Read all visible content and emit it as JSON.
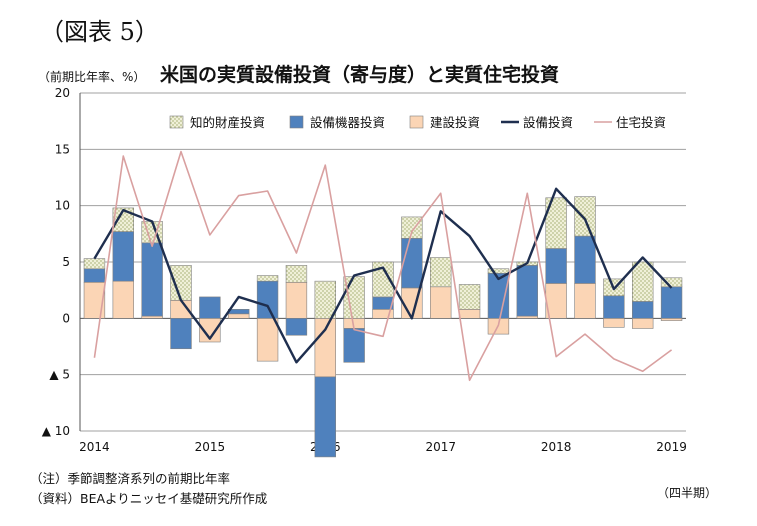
{
  "figure_label": "（図表 5）",
  "unit_label": "（前期比年率、%）",
  "notes": [
    "（注）季節調整済系列の前期比年率",
    "（資料）BEAよりニッセイ基礎研究所作成"
  ],
  "period_label": "（四半期）",
  "chart_data": {
    "type": "bar",
    "title": "米国の実質設備投資（寄与度）と実質住宅投資",
    "ylim": [
      -10,
      20
    ],
    "yticks": [
      20,
      15,
      10,
      5,
      0,
      -5,
      -10
    ],
    "ytick_labels": [
      "20",
      "15",
      "10",
      "5",
      "0",
      "▲ 5",
      "▲ 10"
    ],
    "xtick_labels": [
      {
        "quarter_index": 0,
        "label": "2014"
      },
      {
        "quarter_index": 4,
        "label": "2015"
      },
      {
        "quarter_index": 8,
        "label": "2016"
      },
      {
        "quarter_index": 12,
        "label": "2017"
      },
      {
        "quarter_index": 16,
        "label": "2018"
      },
      {
        "quarter_index": 20,
        "label": "2019"
      }
    ],
    "grid": true,
    "legend_position": "top",
    "colors": {
      "ip": "#f0f0d8",
      "ip_dot": "#7a8a3a",
      "equipment": "#4f81bd",
      "structures": "#fbd5b5",
      "total": "#1f2f4f",
      "residential": "#d9a0a0",
      "bar_edge": "#808080",
      "grid": "#a0a0a0"
    },
    "series": [
      {
        "name": "知的財産投資",
        "key": "ip",
        "kind": "bar",
        "values": [
          0.9,
          2.1,
          1.9,
          3.1,
          0.0,
          0.0,
          0.5,
          1.5,
          3.3,
          3.7,
          3.1,
          1.9,
          2.6,
          2.2,
          0.4,
          0.3,
          4.5,
          3.5,
          1.5,
          3.5,
          0.8
        ]
      },
      {
        "name": "設備機器投資",
        "key": "equipment",
        "kind": "bar",
        "values": [
          1.2,
          4.4,
          6.5,
          -2.7,
          1.9,
          0.4,
          3.3,
          -1.5,
          -7.1,
          -3.0,
          1.1,
          4.4,
          0.0,
          0.0,
          4.0,
          4.5,
          3.1,
          4.2,
          2.0,
          1.5,
          2.8
        ]
      },
      {
        "name": "建設投資",
        "key": "structures",
        "kind": "bar",
        "values": [
          3.2,
          3.3,
          0.2,
          1.6,
          -2.1,
          0.4,
          -3.8,
          3.2,
          -5.2,
          -0.9,
          0.8,
          2.7,
          2.8,
          0.8,
          -1.4,
          0.2,
          3.1,
          3.1,
          -0.8,
          -0.9,
          -0.2
        ]
      },
      {
        "name": "設備投資",
        "key": "total",
        "kind": "line",
        "values": [
          5.3,
          9.6,
          8.6,
          1.6,
          -1.8,
          1.9,
          1.1,
          -3.9,
          -1.0,
          3.8,
          4.5,
          0.0,
          9.5,
          7.3,
          3.5,
          4.9,
          11.5,
          8.8,
          2.6,
          5.4,
          2.7
        ]
      },
      {
        "name": "住宅投資",
        "key": "residential",
        "kind": "line",
        "values": [
          -3.5,
          14.4,
          6.4,
          14.8,
          7.4,
          10.9,
          11.3,
          5.8,
          13.6,
          -1.0,
          -1.6,
          7.7,
          11.1,
          -5.5,
          -0.6,
          11.1,
          -3.4,
          -1.4,
          -3.6,
          -4.7,
          -2.8
        ]
      }
    ]
  }
}
